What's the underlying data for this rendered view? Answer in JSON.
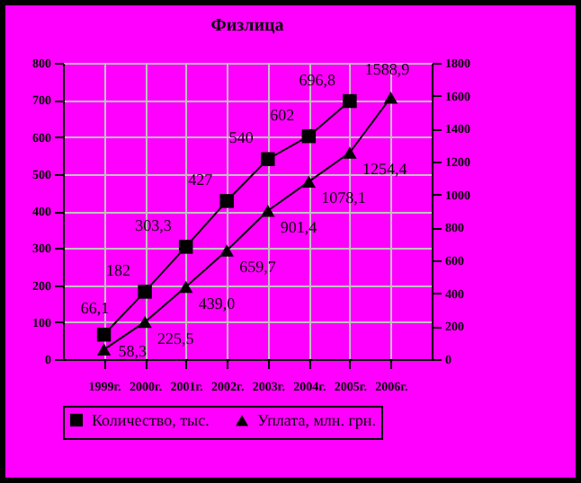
{
  "chart_data": {
    "type": "line",
    "title": "Физлица",
    "categories": [
      "1999г.",
      "2000г.",
      "2001г.",
      "2002г.",
      "2003г.",
      "2004г.",
      "2005г.",
      "2006г."
    ],
    "series": [
      {
        "name": "Количество, тыс.",
        "color": "#000000",
        "marker": "square",
        "values": [
          66.1,
          182,
          303.3,
          427,
          540,
          602,
          696.8,
          null
        ],
        "value_labels": [
          "66,1",
          "182",
          "303,3",
          "427",
          "540",
          "602",
          "696,8",
          null
        ]
      },
      {
        "name": "Уплата, млн. грн.",
        "color": "#000000",
        "marker": "triangle",
        "axis": "y2",
        "values": [
          58.3,
          225.5,
          439.0,
          659.7,
          901.4,
          1078.1,
          1254.4,
          1588.9
        ],
        "value_labels": [
          "58,3",
          "225,5",
          "439,0",
          "659,7",
          "901,4",
          "1078,1",
          "1254,4",
          "1588,9"
        ]
      }
    ],
    "ylim": [
      0,
      800
    ],
    "yticks": [
      0,
      100,
      200,
      300,
      400,
      500,
      600,
      700,
      800
    ],
    "y2lim": [
      0,
      1800
    ],
    "y2ticks": [
      0,
      200,
      400,
      600,
      800,
      1000,
      1200,
      1400,
      1600,
      1800
    ],
    "grid": true,
    "legend": "bottom"
  }
}
